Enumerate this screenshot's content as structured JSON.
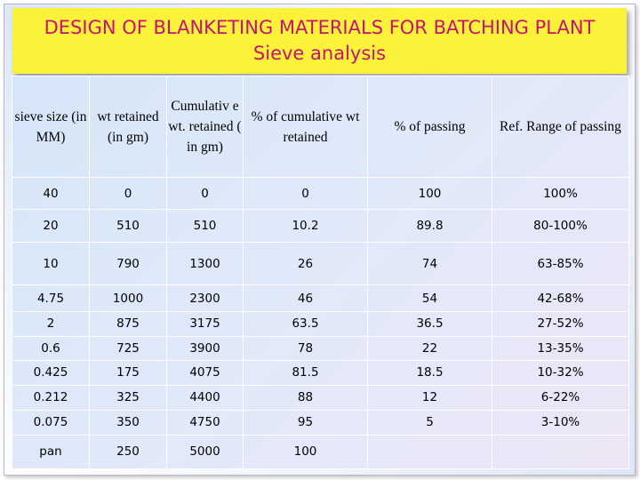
{
  "title": {
    "line1": "DESIGN OF BLANKETING MATERIALS FOR BATCHING PLANT",
    "line2": "Sieve analysis"
  },
  "table": {
    "headers": [
      "sieve size (in MM)",
      "wt retained (in gm)",
      "Cumulativ e wt. retained ( in gm)",
      "% of cumulative wt retained",
      "% of passing",
      "Ref. Range of passing"
    ],
    "rows": [
      [
        "40",
        "0",
        "0",
        "0",
        "100",
        "100%"
      ],
      [
        "20",
        "510",
        "510",
        "10.2",
        "89.8",
        "80-100%"
      ],
      [
        "10",
        "790",
        "1300",
        "26",
        "74",
        "63-85%"
      ],
      [
        "4.75",
        "1000",
        "2300",
        "46",
        "54",
        "42-68%"
      ],
      [
        "2",
        "875",
        "3175",
        "63.5",
        "36.5",
        "27-52%"
      ],
      [
        "0.6",
        "725",
        "3900",
        "78",
        "22",
        "13-35%"
      ],
      [
        "0.425",
        "175",
        "4075",
        "81.5",
        "18.5",
        "10-32%"
      ],
      [
        "0.212",
        "325",
        "4400",
        "88",
        "12",
        "6-22%"
      ],
      [
        "0.075",
        "350",
        "4750",
        "95",
        "5",
        "3-10%"
      ],
      [
        "pan",
        "250",
        "5000",
        "100",
        "",
        ""
      ]
    ]
  },
  "colors": {
    "title_background": "#fdf23a",
    "title_text": "#c41470",
    "table_background": "#dce7f8",
    "grid_lines": "#ffffff"
  }
}
